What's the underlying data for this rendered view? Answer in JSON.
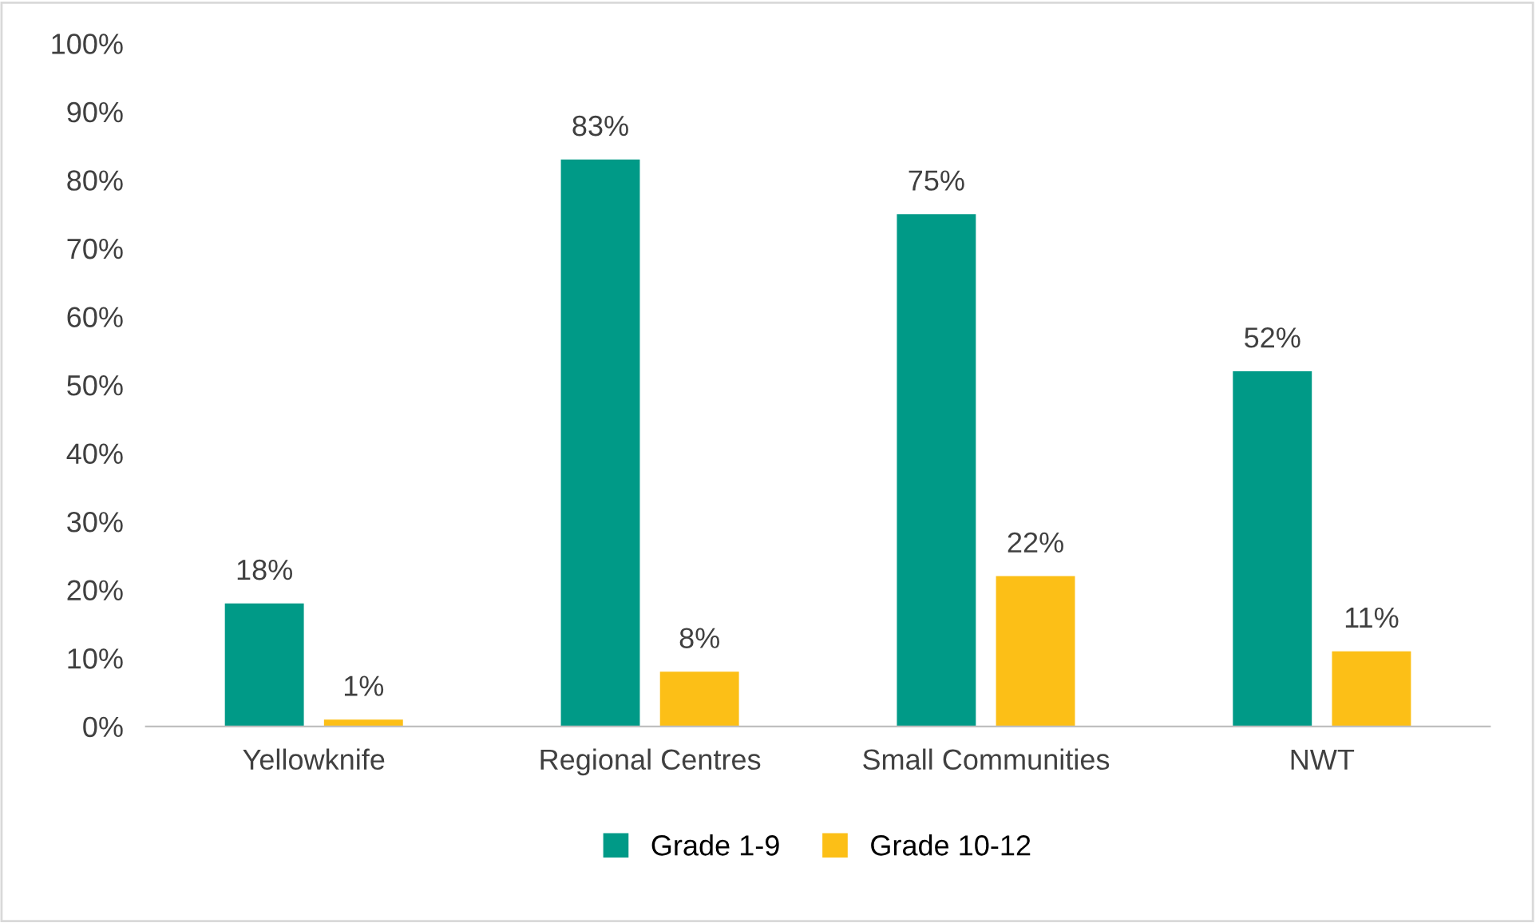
{
  "chart_data": {
    "type": "bar",
    "categories": [
      "Yellowknife",
      "Regional Centres",
      "Small Communities",
      "NWT"
    ],
    "series": [
      {
        "name": "Grade 1-9",
        "color": "#009a87",
        "values": [
          18,
          83,
          75,
          52
        ],
        "value_labels": [
          "18%",
          "83%",
          "75%",
          "52%"
        ]
      },
      {
        "name": "Grade 10-12",
        "color": "#fcbf17",
        "values": [
          1,
          8,
          22,
          11
        ],
        "value_labels": [
          "1%",
          "8%",
          "22%",
          "11%"
        ]
      }
    ],
    "ylim": [
      0,
      100
    ],
    "yticks": [
      {
        "value": 0,
        "label": "0%"
      },
      {
        "value": 10,
        "label": "10%"
      },
      {
        "value": 20,
        "label": "20%"
      },
      {
        "value": 30,
        "label": "30%"
      },
      {
        "value": 40,
        "label": "40%"
      },
      {
        "value": 50,
        "label": "50%"
      },
      {
        "value": 60,
        "label": "60%"
      },
      {
        "value": 70,
        "label": "70%"
      },
      {
        "value": 80,
        "label": "80%"
      },
      {
        "value": 90,
        "label": "90%"
      },
      {
        "value": 100,
        "label": "100%"
      }
    ],
    "grid": false,
    "legend": "bottom"
  }
}
